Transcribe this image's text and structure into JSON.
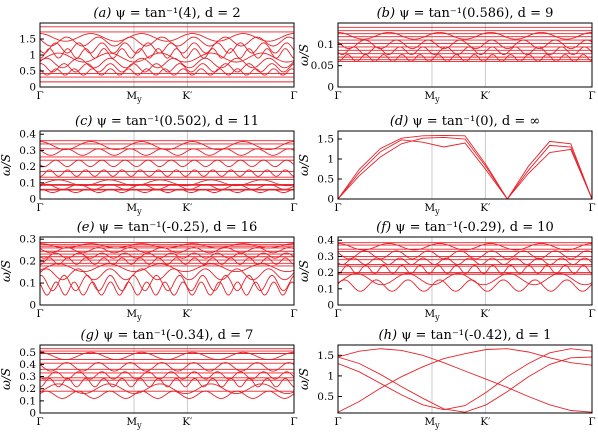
{
  "figure": {
    "panels": [
      {
        "tag": "(a)",
        "psi": "ψ = tan⁻¹(4), d = 2",
        "yticks": [
          "0",
          "0.5",
          "1",
          "1.5"
        ],
        "ylabel": ""
      },
      {
        "tag": "(b)",
        "psi": "ψ = tan⁻¹(0.586), d = 9",
        "yticks": [
          "0",
          "0.05",
          "0.1"
        ],
        "ylabel": "ω/S"
      },
      {
        "tag": "(c)",
        "psi": "ψ = tan⁻¹(0.502), d = 11",
        "yticks": [
          "0",
          "0.1",
          "0.2",
          "0.3",
          "0.4"
        ],
        "ylabel": "ω/S"
      },
      {
        "tag": "(d)",
        "psi": "ψ = tan⁻¹(0), d = ∞",
        "yticks": [
          "0",
          "0.5",
          "1",
          "1.5"
        ],
        "ylabel": "ω/S"
      },
      {
        "tag": "(e)",
        "psi": "ψ = tan⁻¹(-0.25), d = 16",
        "yticks": [
          "0",
          "0.1",
          "0.2",
          "0.3"
        ],
        "ylabel": "ω/S"
      },
      {
        "tag": "(f)",
        "psi": "ψ = tan⁻¹(-0.29), d = 10",
        "yticks": [
          "0",
          "0.1",
          "0.2",
          "0.3",
          "0.4"
        ],
        "ylabel": "ω/S"
      },
      {
        "tag": "(g)",
        "psi": "ψ = tan⁻¹(-0.34), d = 7",
        "yticks": [
          "0",
          "0.1",
          "0.2",
          "0.3",
          "0.4",
          "0.5"
        ],
        "ylabel": "ω/S"
      },
      {
        "tag": "(h)",
        "psi": "ψ = tan⁻¹(-0.42), d = 1",
        "yticks": [
          "0.5",
          "1",
          "1.5"
        ],
        "ylabel": "ω/S"
      }
    ],
    "xticks": [
      "Γ",
      "M_y",
      "K′",
      "Γ"
    ]
  },
  "chart_data": [
    {
      "type": "line",
      "title": "(a) ψ = tan⁻¹(4), d = 2",
      "xlabel": "",
      "ylabel": "",
      "x": [
        "Γ",
        "M_y",
        "K′",
        "Γ"
      ],
      "ylim": [
        0,
        2.0
      ],
      "line_color": "#e8232a",
      "grid": false,
      "bands": {
        "count": 13,
        "flat": [
          1.88,
          1.72,
          0.42,
          0.31,
          0.16
        ],
        "wavy": [
          [
            1.55,
            0.12
          ],
          [
            1.42,
            0.14
          ],
          [
            1.22,
            0.16
          ],
          [
            1.05,
            0.15
          ],
          [
            0.92,
            0.14
          ],
          [
            0.75,
            0.15
          ],
          [
            0.6,
            0.13
          ],
          [
            0.47,
            0.1
          ]
        ]
      }
    },
    {
      "type": "line",
      "title": "(b) ψ = tan⁻¹(0.586), d = 9",
      "xlabel": "",
      "ylabel": "ω/S",
      "x": [
        "Γ",
        "M_y",
        "K′",
        "Γ"
      ],
      "ylim": [
        0,
        0.15
      ],
      "line_color": "#e8232a",
      "grid": false,
      "bands": {
        "count": 16,
        "flat": [
          0.14,
          0.132,
          0.125,
          0.118,
          0.11,
          0.102,
          0.094,
          0.086,
          0.078,
          0.07,
          0.064,
          0.06
        ],
        "wavy": [
          [
            0.12,
            0.008
          ],
          [
            0.1,
            0.01
          ],
          [
            0.085,
            0.009
          ],
          [
            0.068,
            0.008
          ]
        ]
      }
    },
    {
      "type": "line",
      "title": "(c) ψ = tan⁻¹(0.502), d = 11",
      "xlabel": "",
      "ylabel": "ω/S",
      "x": [
        "Γ",
        "M_y",
        "K′",
        "Γ"
      ],
      "ylim": [
        0,
        0.42
      ],
      "line_color": "#e8232a",
      "grid": false,
      "bands": {
        "count": 19,
        "flat": [
          0.36,
          0.34,
          0.31,
          0.26,
          0.24,
          0.17,
          0.135,
          0.12,
          0.09,
          0.085,
          0.06,
          0.055
        ],
        "wavy": [
          [
            0.33,
            0.025
          ],
          [
            0.29,
            0.02
          ],
          [
            0.22,
            0.02
          ],
          [
            0.16,
            0.02
          ],
          [
            0.1,
            0.018
          ],
          [
            0.075,
            0.015
          ],
          [
            0.05,
            0.01
          ]
        ]
      }
    },
    {
      "type": "line",
      "title": "(d) ψ = tan⁻¹(0), d = ∞",
      "xlabel": "",
      "ylabel": "ω/S",
      "x": [
        "Γ",
        "M_y",
        "K′",
        "Γ"
      ],
      "ylim": [
        0,
        1.7
      ],
      "line_color": "#e8232a",
      "grid": false,
      "series": [
        {
          "x": [
            0,
            0.25,
            0.5,
            0.75,
            1.0,
            1.25,
            1.5,
            1.75,
            2.0,
            2.25,
            2.5,
            2.75,
            3.0
          ],
          "y": [
            0,
            0.74,
            1.26,
            1.52,
            1.58,
            1.59,
            1.58,
            0.85,
            0,
            0.82,
            1.44,
            1.38,
            0
          ]
        },
        {
          "x": [
            0,
            0.25,
            0.5,
            0.75,
            1.0,
            1.25,
            1.5,
            1.75,
            2.0,
            2.25,
            2.5,
            2.75,
            3.0
          ],
          "y": [
            0,
            0.58,
            1.05,
            1.38,
            1.52,
            1.54,
            1.5,
            0.8,
            0,
            0.72,
            1.34,
            1.3,
            0
          ]
        },
        {
          "x": [
            0,
            0.25,
            0.5,
            0.75,
            1.0,
            1.25,
            1.5,
            1.75,
            2.0,
            2.25,
            2.5,
            2.75,
            3.0
          ],
          "y": [
            0,
            0.66,
            1.18,
            1.48,
            1.42,
            1.3,
            1.4,
            0.72,
            0,
            0.64,
            1.16,
            1.24,
            0
          ]
        }
      ]
    },
    {
      "type": "line",
      "title": "(e) ψ = tan⁻¹(-0.25), d = 16",
      "xlabel": "",
      "ylabel": "ω/S",
      "x": [
        "Γ",
        "M_y",
        "K′",
        "Γ"
      ],
      "ylim": [
        0,
        0.31
      ],
      "line_color": "#e8232a",
      "grid": false,
      "bands": {
        "count": 22,
        "flat": [
          0.285,
          0.275,
          0.268,
          0.26,
          0.245,
          0.232,
          0.22,
          0.205,
          0.19,
          0.178
        ],
        "wavy": [
          [
            0.27,
            0.01
          ],
          [
            0.25,
            0.012
          ],
          [
            0.225,
            0.012
          ],
          [
            0.2,
            0.015
          ],
          [
            0.17,
            0.018
          ],
          [
            0.14,
            0.025
          ],
          [
            0.1,
            0.035
          ],
          [
            0.075,
            0.03
          ]
        ]
      }
    },
    {
      "type": "line",
      "title": "(f) ψ = tan⁻¹(-0.29), d = 10",
      "xlabel": "",
      "ylabel": "ω/S",
      "x": [
        "Γ",
        "M_y",
        "K′",
        "Γ"
      ],
      "ylim": [
        0,
        0.42
      ],
      "line_color": "#e8232a",
      "grid": false,
      "bands": {
        "count": 18,
        "flat": [
          0.385,
          0.37,
          0.345,
          0.33,
          0.3,
          0.28,
          0.25,
          0.24,
          0.2,
          0.19
        ],
        "wavy": [
          [
            0.36,
            0.02
          ],
          [
            0.31,
            0.025
          ],
          [
            0.27,
            0.02
          ],
          [
            0.22,
            0.025
          ],
          [
            0.16,
            0.035
          ],
          [
            0.12,
            0.035
          ]
        ]
      }
    },
    {
      "type": "line",
      "title": "(g) ψ = tan⁻¹(-0.34), d = 7",
      "xlabel": "",
      "ylabel": "ω/S",
      "x": [
        "Γ",
        "M_y",
        "K′",
        "Γ"
      ],
      "ylim": [
        0,
        0.56
      ],
      "line_color": "#e8232a",
      "grid": false,
      "bands": {
        "count": 14,
        "flat": [
          0.53,
          0.51,
          0.49,
          0.44,
          0.41,
          0.36,
          0.33,
          0.29,
          0.27,
          0.18
        ],
        "wavy": [
          [
            0.47,
            0.03
          ],
          [
            0.38,
            0.035
          ],
          [
            0.31,
            0.03
          ],
          [
            0.25,
            0.035
          ],
          [
            0.2,
            0.04
          ],
          [
            0.15,
            0.03
          ]
        ]
      }
    },
    {
      "type": "line",
      "title": "(h) ψ = tan⁻¹(-0.42), d = 1",
      "xlabel": "",
      "ylabel": "ω/S",
      "x": [
        "Γ",
        "M_y",
        "K′",
        "Γ"
      ],
      "ylim": [
        0.1,
        1.75
      ],
      "line_color": "#e8232a",
      "grid": false,
      "series": [
        {
          "x": [
            0,
            0.25,
            0.5,
            0.75,
            1.0,
            1.25,
            1.5,
            1.75,
            2.0,
            2.25,
            2.5,
            2.75,
            3.0
          ],
          "y": [
            1.46,
            1.6,
            1.66,
            1.62,
            1.5,
            1.32,
            1.12,
            0.92,
            0.72,
            0.5,
            0.3,
            0.16,
            0.12
          ]
        },
        {
          "x": [
            0,
            0.25,
            0.5,
            0.75,
            1.0,
            1.25,
            1.5,
            1.75,
            2.0,
            2.25,
            2.5,
            2.75,
            3.0
          ],
          "y": [
            0.12,
            0.38,
            0.7,
            0.98,
            1.22,
            1.42,
            1.54,
            1.64,
            1.66,
            1.58,
            1.44,
            1.32,
            1.26
          ]
        },
        {
          "x": [
            0,
            0.25,
            0.5,
            0.75,
            1.0,
            1.25,
            1.5,
            1.75,
            2.0,
            2.25,
            2.5,
            2.75,
            3.0
          ],
          "y": [
            1.3,
            1.1,
            0.82,
            0.54,
            0.3,
            0.18,
            0.28,
            0.6,
            0.98,
            1.3,
            1.56,
            1.66,
            1.6
          ]
        },
        {
          "x": [
            0,
            0.25,
            0.5,
            0.75,
            1.0,
            1.25,
            1.5,
            1.75,
            2.0,
            2.25,
            2.5,
            2.75,
            3.0
          ],
          "y": [
            1.46,
            1.3,
            1.04,
            0.74,
            0.46,
            0.2,
            0.12,
            0.3,
            0.62,
            0.98,
            1.28,
            1.44,
            1.46
          ]
        }
      ]
    }
  ]
}
